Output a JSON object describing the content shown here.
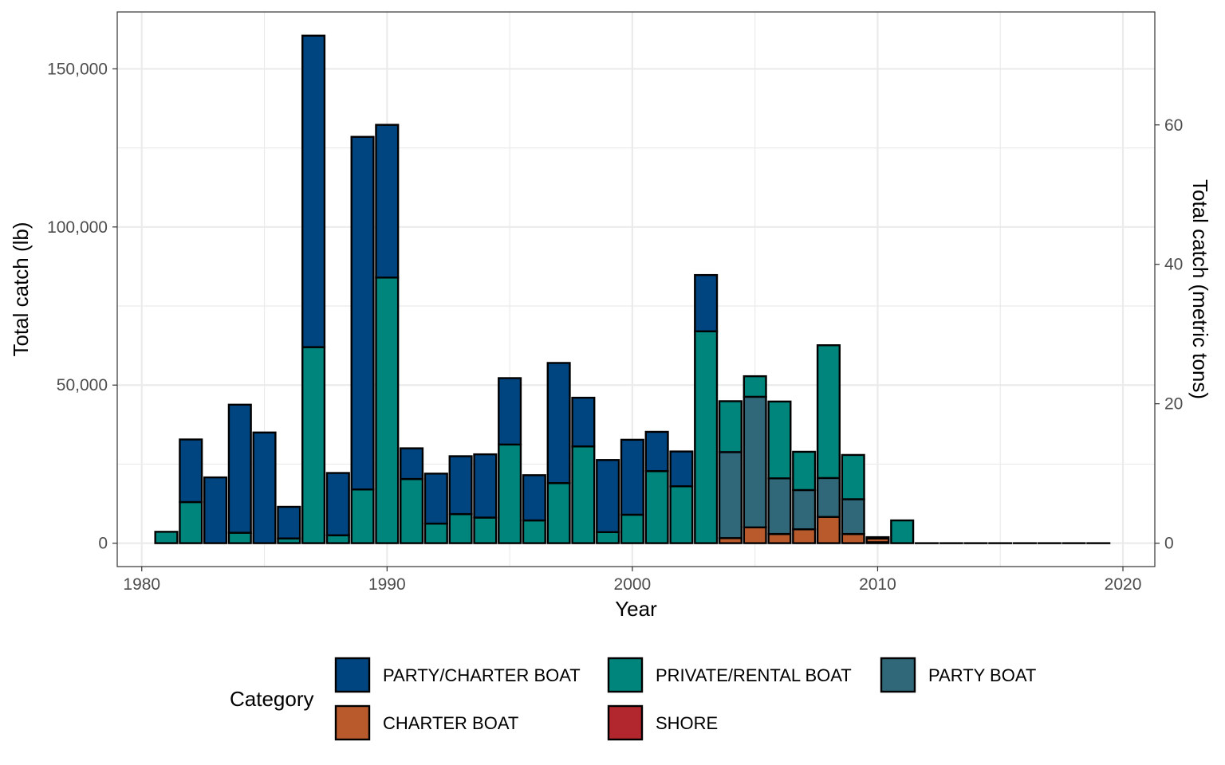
{
  "chart_data": {
    "type": "bar",
    "stacked": true,
    "xlabel": "Year",
    "ylabel": "Total catch (lb)",
    "y2label": "Total catch (metric tons)",
    "x_ticks": [
      1980,
      1990,
      2000,
      2010,
      2020
    ],
    "y_ticks": [
      0,
      50000,
      100000,
      150000
    ],
    "y_tick_labels": [
      "0",
      "50,000",
      "100,000",
      "150,000"
    ],
    "y2_ticks": [
      0,
      20,
      40,
      60
    ],
    "y2_tick_labels": [
      "0",
      "20",
      "40",
      "60"
    ],
    "xlim": [
      1979,
      2021.3
    ],
    "ylim": [
      -7400,
      168000
    ],
    "grid": true,
    "legend_title": "Category",
    "legend_position": "bottom",
    "series": [
      {
        "name": "SHORE",
        "color": "#b2262d"
      },
      {
        "name": "CHARTER BOAT",
        "color": "#b95a2d"
      },
      {
        "name": "PARTY BOAT",
        "color": "#30687a"
      },
      {
        "name": "PRIVATE/RENTAL BOAT",
        "color": "#00857c"
      },
      {
        "name": "PARTY/CHARTER BOAT",
        "color": "#004580"
      }
    ],
    "legend_order": [
      "PARTY/CHARTER BOAT",
      "PRIVATE/RENTAL BOAT",
      "PARTY BOAT",
      "CHARTER BOAT",
      "SHORE"
    ],
    "data": [
      {
        "year": 1981,
        "PRIVATE/RENTAL BOAT": 3600
      },
      {
        "year": 1982,
        "PRIVATE/RENTAL BOAT": 13000,
        "PARTY/CHARTER BOAT": 19800
      },
      {
        "year": 1983,
        "PARTY/CHARTER BOAT": 20800
      },
      {
        "year": 1984,
        "PRIVATE/RENTAL BOAT": 3300,
        "PARTY/CHARTER BOAT": 40500
      },
      {
        "year": 1985,
        "PARTY/CHARTER BOAT": 35000
      },
      {
        "year": 1986,
        "PRIVATE/RENTAL BOAT": 1500,
        "PARTY/CHARTER BOAT": 10000
      },
      {
        "year": 1987,
        "PRIVATE/RENTAL BOAT": 62000,
        "PARTY/CHARTER BOAT": 98500
      },
      {
        "year": 1988,
        "PRIVATE/RENTAL BOAT": 2500,
        "PARTY/CHARTER BOAT": 19700
      },
      {
        "year": 1989,
        "PRIVATE/RENTAL BOAT": 17000,
        "PARTY/CHARTER BOAT": 111500
      },
      {
        "year": 1990,
        "PRIVATE/RENTAL BOAT": 84000,
        "PARTY/CHARTER BOAT": 48300
      },
      {
        "year": 1991,
        "PRIVATE/RENTAL BOAT": 20300,
        "PARTY/CHARTER BOAT": 9700
      },
      {
        "year": 1992,
        "PRIVATE/RENTAL BOAT": 6200,
        "PARTY/CHARTER BOAT": 15800
      },
      {
        "year": 1993,
        "PRIVATE/RENTAL BOAT": 9200,
        "PARTY/CHARTER BOAT": 18300
      },
      {
        "year": 1994,
        "PRIVATE/RENTAL BOAT": 8100,
        "PARTY/CHARTER BOAT": 20000
      },
      {
        "year": 1995,
        "PRIVATE/RENTAL BOAT": 31200,
        "PARTY/CHARTER BOAT": 21000
      },
      {
        "year": 1996,
        "PRIVATE/RENTAL BOAT": 7200,
        "PARTY/CHARTER BOAT": 14300
      },
      {
        "year": 1997,
        "PRIVATE/RENTAL BOAT": 19000,
        "PARTY/CHARTER BOAT": 38000
      },
      {
        "year": 1998,
        "PRIVATE/RENTAL BOAT": 30600,
        "PARTY/CHARTER BOAT": 15400
      },
      {
        "year": 1999,
        "PRIVATE/RENTAL BOAT": 3500,
        "PARTY/CHARTER BOAT": 22800
      },
      {
        "year": 2000,
        "PRIVATE/RENTAL BOAT": 9000,
        "PARTY/CHARTER BOAT": 23700
      },
      {
        "year": 2001,
        "PRIVATE/RENTAL BOAT": 22800,
        "PARTY/CHARTER BOAT": 12400
      },
      {
        "year": 2002,
        "PRIVATE/RENTAL BOAT": 18000,
        "PARTY/CHARTER BOAT": 11000
      },
      {
        "year": 2003,
        "PRIVATE/RENTAL BOAT": 67000,
        "PARTY/CHARTER BOAT": 17800
      },
      {
        "year": 2004,
        "CHARTER BOAT": 1600,
        "PARTY BOAT": 27200,
        "PRIVATE/RENTAL BOAT": 16100
      },
      {
        "year": 2005,
        "CHARTER BOAT": 5000,
        "PARTY BOAT": 41300,
        "PRIVATE/RENTAL BOAT": 6500
      },
      {
        "year": 2006,
        "CHARTER BOAT": 2900,
        "PARTY BOAT": 17600,
        "PRIVATE/RENTAL BOAT": 24300
      },
      {
        "year": 2007,
        "CHARTER BOAT": 4400,
        "PARTY BOAT": 12400,
        "PRIVATE/RENTAL BOAT": 12100
      },
      {
        "year": 2008,
        "CHARTER BOAT": 8300,
        "PARTY BOAT": 12300,
        "PRIVATE/RENTAL BOAT": 42000
      },
      {
        "year": 2009,
        "CHARTER BOAT": 2900,
        "PARTY BOAT": 11000,
        "PRIVATE/RENTAL BOAT": 14000
      },
      {
        "year": 2010,
        "SHORE": 300,
        "CHARTER BOAT": 1200,
        "PARTY BOAT": 400
      },
      {
        "year": 2011,
        "PRIVATE/RENTAL BOAT": 7200
      },
      {
        "year": 2012,
        "PRIVATE/RENTAL BOAT": 0
      },
      {
        "year": 2013,
        "PRIVATE/RENTAL BOAT": 0
      },
      {
        "year": 2014,
        "PRIVATE/RENTAL BOAT": 0
      },
      {
        "year": 2015,
        "PRIVATE/RENTAL BOAT": 0
      },
      {
        "year": 2016,
        "PRIVATE/RENTAL BOAT": 0
      },
      {
        "year": 2017,
        "PRIVATE/RENTAL BOAT": 0
      },
      {
        "year": 2018,
        "PRIVATE/RENTAL BOAT": 0
      },
      {
        "year": 2019,
        "PRIVATE/RENTAL BOAT": 0
      }
    ]
  }
}
